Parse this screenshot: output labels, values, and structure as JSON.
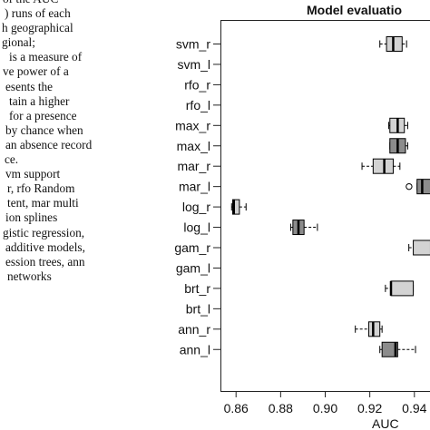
{
  "caption_lines": [
    {
      "text": "of the AUC",
      "indent": 3
    },
    {
      "text": ") runs of each",
      "indent": 5
    },
    {
      "text": "h geographical",
      "indent": 2
    },
    {
      "text": "gional;",
      "indent": 2
    },
    {
      "text": "is a measure of",
      "indent": 10
    },
    {
      "text": "ve power of a",
      "indent": 3
    },
    {
      "text": "esents the",
      "indent": 6
    },
    {
      "text": "tain a higher",
      "indent": 10
    },
    {
      "text": "for a presence",
      "indent": 10
    },
    {
      "text": "by chance when",
      "indent": 6
    },
    {
      "text": "an absence record",
      "indent": 6
    },
    {
      "text": "ce.",
      "indent": 5
    },
    {
      "text": "vm support",
      "indent": 6
    },
    {
      "text": "r, rfo Random",
      "indent": 8
    },
    {
      "text": "tent, mar multi",
      "indent": 8
    },
    {
      "text": "ion splines",
      "indent": 6
    },
    {
      "text": "gistic regression,",
      "indent": 3
    },
    {
      "text": "additive models,",
      "indent": 6
    },
    {
      "text": "ession trees, ann",
      "indent": 6
    },
    {
      "text": "networks",
      "indent": 8
    }
  ],
  "chart_data": {
    "type": "boxplot",
    "title": "Model evaluatio",
    "xlabel": "AUC",
    "xlim": [
      0.853,
      0.947
    ],
    "xticks": [
      0.86,
      0.88,
      0.9,
      0.92,
      0.94
    ],
    "xtick_labels": [
      "0.86",
      "0.88",
      "0.90",
      "0.92",
      "0.94"
    ],
    "grid": false,
    "fill_colors": {
      "regional": "#d3d3d3",
      "local": "#8c8c8c"
    },
    "categories": [
      "svm_r",
      "svm_l",
      "rfo_r",
      "rfo_l",
      "max_r",
      "max_l",
      "mar_r",
      "mar_l",
      "log_r",
      "log_l",
      "gam_r",
      "gam_l",
      "brt_r",
      "brt_l",
      "ann_r",
      "ann_l"
    ],
    "boxes": [
      {
        "label": "svm_r",
        "group": "regional",
        "wmin": 0.9245,
        "q1": 0.9275,
        "median": 0.9305,
        "q3": 0.9345,
        "wmax": 0.9365,
        "outliers": []
      },
      {
        "label": "svm_l",
        "group": "local",
        "wmin": null,
        "q1": null,
        "median": null,
        "q3": null,
        "wmax": null,
        "outliers": []
      },
      {
        "label": "rfo_r",
        "group": "regional",
        "wmin": null,
        "q1": null,
        "median": null,
        "q3": null,
        "wmax": null,
        "outliers": []
      },
      {
        "label": "rfo_l",
        "group": "local",
        "wmin": null,
        "q1": null,
        "median": null,
        "q3": null,
        "wmax": null,
        "outliers": []
      },
      {
        "label": "max_r",
        "group": "regional",
        "wmin": 0.9285,
        "q1": 0.929,
        "median": 0.9325,
        "q3": 0.9355,
        "wmax": 0.937,
        "outliers": []
      },
      {
        "label": "max_l",
        "group": "local",
        "wmin": 0.929,
        "q1": 0.929,
        "median": 0.9325,
        "q3": 0.936,
        "wmax": 0.937,
        "outliers": []
      },
      {
        "label": "mar_r",
        "group": "regional",
        "wmin": 0.9165,
        "q1": 0.9215,
        "median": 0.9265,
        "q3": 0.9305,
        "wmax": 0.9335,
        "outliers": []
      },
      {
        "label": "mar_l",
        "group": "local",
        "wmin": 0.9412,
        "q1": 0.9412,
        "median": 0.9435,
        "q3": 0.9475,
        "wmax": 0.9475,
        "outliers": [
          0.9376
        ]
      },
      {
        "label": "log_r",
        "group": "regional",
        "wmin": 0.858,
        "q1": 0.8585,
        "median": 0.859,
        "q3": 0.8615,
        "wmax": 0.8645,
        "outliers": []
      },
      {
        "label": "log_l",
        "group": "local",
        "wmin": 0.8845,
        "q1": 0.8855,
        "median": 0.888,
        "q3": 0.8905,
        "wmax": 0.8965,
        "outliers": []
      },
      {
        "label": "gam_r",
        "group": "regional",
        "wmin": 0.9375,
        "q1": 0.9395,
        "median": 0.9475,
        "q3": 0.9475,
        "wmax": 0.9475,
        "outliers": []
      },
      {
        "label": "gam_l",
        "group": "local",
        "wmin": null,
        "q1": null,
        "median": null,
        "q3": null,
        "wmax": null,
        "outliers": []
      },
      {
        "label": "brt_r",
        "group": "regional",
        "wmin": 0.927,
        "q1": 0.9295,
        "median": 0.9295,
        "q3": 0.9395,
        "wmax": 0.9395,
        "outliers": []
      },
      {
        "label": "brt_l",
        "group": "local",
        "wmin": null,
        "q1": null,
        "median": null,
        "q3": null,
        "wmax": null,
        "outliers": []
      },
      {
        "label": "ann_r",
        "group": "regional",
        "wmin": 0.9135,
        "q1": 0.9195,
        "median": 0.9215,
        "q3": 0.9245,
        "wmax": 0.9255,
        "outliers": []
      },
      {
        "label": "ann_l",
        "group": "local",
        "wmin": 0.9245,
        "q1": 0.9255,
        "median": 0.9315,
        "q3": 0.9325,
        "wmax": 0.9405,
        "outliers": []
      }
    ]
  }
}
